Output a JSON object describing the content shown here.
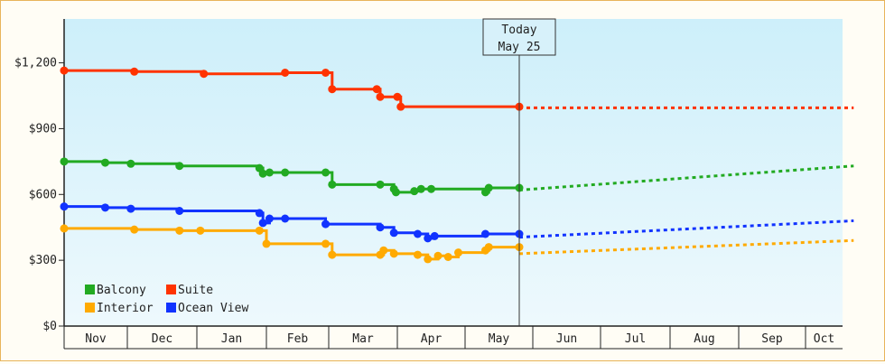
{
  "chart_data": {
    "type": "line",
    "title": "",
    "xlabel": "",
    "ylabel": "",
    "yticks": [
      "$0",
      "$300",
      "$600",
      "$900",
      "$1,200"
    ],
    "ylim": [
      0,
      1400
    ],
    "xticks": [
      "Nov",
      "Dec",
      "Jan",
      "Feb",
      "Mar",
      "Apr",
      "May",
      "Jun",
      "Jul",
      "Aug",
      "Sep",
      "Oct"
    ],
    "today": {
      "line1": "Today",
      "line2": "May 25"
    },
    "grid": false,
    "legend_position": "bottom-left",
    "background": [
      "#cdeffa",
      "#eef9fd"
    ],
    "series": [
      {
        "name": "Suite",
        "color": "#ff3300",
        "points": [
          [
            0,
            1165
          ],
          [
            1.1,
            1160
          ],
          [
            2.1,
            1150
          ],
          [
            3.3,
            1155
          ],
          [
            3.95,
            1155
          ],
          [
            4.05,
            1080
          ],
          [
            4.7,
            1080
          ],
          [
            4.75,
            1045
          ],
          [
            5.0,
            1045
          ],
          [
            5.05,
            1000
          ],
          [
            6.8,
            1000
          ]
        ],
        "forecast": [
          [
            6.8,
            995
          ],
          [
            12.3,
            995
          ]
        ]
      },
      {
        "name": "Balcony",
        "color": "#22aa22",
        "points": [
          [
            0,
            750
          ],
          [
            0.65,
            745
          ],
          [
            1.05,
            740
          ],
          [
            1.75,
            730
          ],
          [
            2.9,
            720
          ],
          [
            2.95,
            695
          ],
          [
            3.05,
            700
          ],
          [
            3.3,
            700
          ],
          [
            3.95,
            700
          ],
          [
            4.05,
            645
          ],
          [
            4.75,
            645
          ],
          [
            4.95,
            625
          ],
          [
            4.98,
            610
          ],
          [
            5.25,
            615
          ],
          [
            5.35,
            625
          ],
          [
            5.5,
            625
          ],
          [
            6.3,
            610
          ],
          [
            6.35,
            630
          ],
          [
            6.8,
            630
          ]
        ],
        "forecast": [
          [
            6.8,
            620
          ],
          [
            12.3,
            730
          ]
        ]
      },
      {
        "name": "Ocean View",
        "color": "#1133ff",
        "points": [
          [
            0,
            545
          ],
          [
            0.65,
            540
          ],
          [
            1.05,
            535
          ],
          [
            1.75,
            525
          ],
          [
            2.9,
            515
          ],
          [
            2.95,
            470
          ],
          [
            3.05,
            490
          ],
          [
            3.3,
            490
          ],
          [
            3.95,
            465
          ],
          [
            4.75,
            450
          ],
          [
            4.95,
            425
          ],
          [
            5.3,
            420
          ],
          [
            5.45,
            400
          ],
          [
            5.55,
            410
          ],
          [
            6.3,
            420
          ],
          [
            6.8,
            420
          ]
        ],
        "forecast": [
          [
            6.8,
            405
          ],
          [
            12.3,
            480
          ]
        ]
      },
      {
        "name": "Interior",
        "color": "#ffaa00",
        "points": [
          [
            0,
            445
          ],
          [
            1.1,
            440
          ],
          [
            1.75,
            435
          ],
          [
            2.05,
            435
          ],
          [
            2.9,
            435
          ],
          [
            3.0,
            375
          ],
          [
            3.95,
            375
          ],
          [
            4.05,
            325
          ],
          [
            4.75,
            325
          ],
          [
            4.8,
            345
          ],
          [
            4.95,
            330
          ],
          [
            5.3,
            325
          ],
          [
            5.45,
            305
          ],
          [
            5.6,
            320
          ],
          [
            5.75,
            315
          ],
          [
            5.9,
            335
          ],
          [
            6.3,
            345
          ],
          [
            6.35,
            360
          ],
          [
            6.8,
            360
          ]
        ],
        "forecast": [
          [
            6.8,
            330
          ],
          [
            12.3,
            390
          ]
        ]
      }
    ],
    "legend": [
      {
        "label": "Balcony",
        "color": "#22aa22"
      },
      {
        "label": "Suite",
        "color": "#ff3300"
      },
      {
        "label": "Interior",
        "color": "#ffaa00"
      },
      {
        "label": "Ocean View",
        "color": "#1133ff"
      }
    ]
  }
}
